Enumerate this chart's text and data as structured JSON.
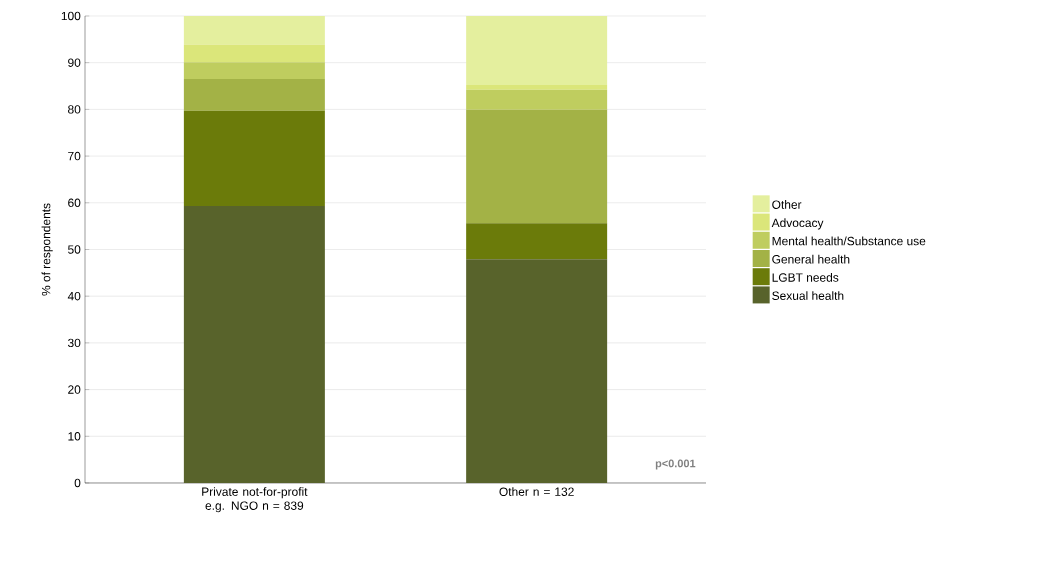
{
  "chart_data": {
    "type": "bar",
    "stacked": true,
    "ylabel": "% of respondents",
    "categories": [
      "Private not-for-profit e.g. NGO n = 839",
      "Other n = 132"
    ],
    "series": [
      {
        "name": "Sexual health",
        "color": "#58632b",
        "values": [
          59.3,
          47.9
        ]
      },
      {
        "name": "LGBT needs",
        "color": "#6b7b0a",
        "values": [
          20.4,
          7.7
        ]
      },
      {
        "name": "General health",
        "color": "#a3b246",
        "values": [
          6.8,
          24.3
        ]
      },
      {
        "name": "Mental health/Substance use",
        "color": "#bfcd5f",
        "values": [
          3.6,
          4.3
        ]
      },
      {
        "name": "Advocacy",
        "color": "#dbe67a",
        "values": [
          3.8,
          1.0
        ]
      },
      {
        "name": "Other",
        "color": "#e4ef9e",
        "values": [
          6.1,
          14.8
        ]
      }
    ],
    "ylim": [
      0,
      100
    ],
    "yticks": [
      0,
      10,
      20,
      30,
      40,
      50,
      60,
      70,
      80,
      90,
      100
    ],
    "grid": "y",
    "legend": "right",
    "annotations": [
      "p<0.001"
    ]
  }
}
